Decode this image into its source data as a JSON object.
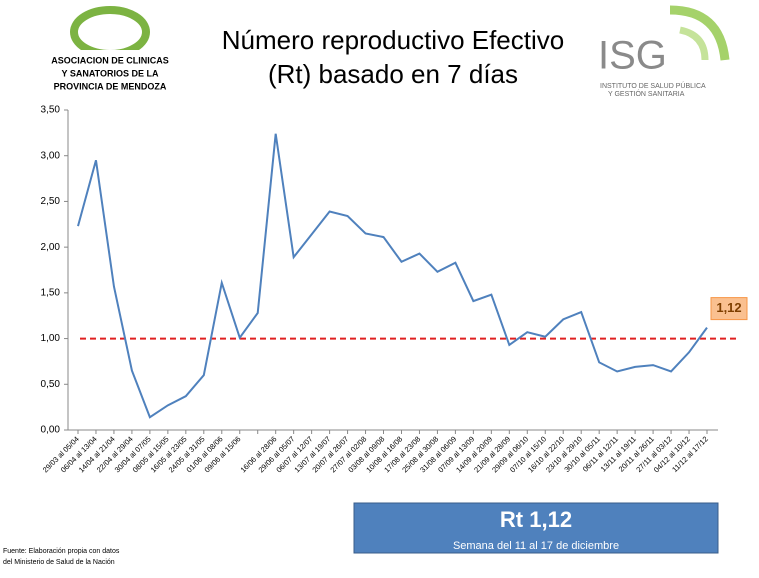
{
  "chart_data": {
    "type": "line",
    "title": [
      "Número reproductivo Efectivo",
      "(Rt) basado en 7 días"
    ],
    "logo_left": [
      "ASOCIACION DE CLINICAS",
      "Y SANATORIOS DE LA",
      "PROVINCIA DE MENDOZA"
    ],
    "logo_right": {
      "name": "ISG",
      "lines": [
        "INSTITUTO DE SALUD PÚBLICA",
        "Y GESTIÓN SANITARIA"
      ]
    },
    "categories": [
      "29/03 al 05/04",
      "06/04 al 13/04",
      "14/04 al 21/04",
      "22/04 al 29/04",
      "30/04 al 07/05",
      "08/05 al 15/05",
      "16/05 al 23/05",
      "24/05 al 31/05",
      "01/06 al 08/06",
      "09/06 al 15/06",
      null,
      "16/06 al 28/06",
      "29/06 al 05/07",
      "06/07 al 12/07",
      "13/07 al 19/07",
      "20/07 al 26/07",
      "27/07 al 02/08",
      "03/08 al 09/08",
      "10/08 al 16/08",
      "17/08 al 23/08",
      "25/08 al 30/08",
      "31/08 al 06/09",
      "07/09 al 13/09",
      "14/09 al 20/09",
      "21/09 al 28/09",
      "29/09 al 06/10",
      "07/10 al 15/10",
      "16/10 al 22/10",
      "23/10 al 29/10",
      "30/10 al 05/11",
      "06/11 al 12/11",
      "13/11 al 19/11",
      "20/11 al 26/11",
      "27/11 al 03/12",
      "04/12 al 10/12",
      "11/12 al 17/12"
    ],
    "values": [
      2.23,
      2.95,
      1.57,
      0.65,
      0.14,
      0.27,
      0.37,
      0.6,
      1.61,
      1.01,
      1.28,
      3.24,
      1.89,
      2.14,
      2.39,
      2.34,
      2.15,
      2.11,
      1.84,
      1.93,
      1.73,
      1.83,
      1.41,
      1.48,
      0.93,
      1.07,
      1.02,
      1.21,
      1.29,
      0.74,
      0.64,
      0.69,
      0.71,
      0.64,
      0.85,
      1.12
    ],
    "color": "#4f81bd",
    "ylim": [
      0,
      3.5
    ],
    "yticks": [
      {
        "value": 0,
        "label": "0,00"
      },
      {
        "value": 0.5,
        "label": "0,50"
      },
      {
        "value": 1,
        "label": "1,00"
      },
      {
        "value": 1.5,
        "label": "1,50"
      },
      {
        "value": 2,
        "label": "2,00"
      },
      {
        "value": 2.5,
        "label": "2,50"
      },
      {
        "value": 3,
        "label": "3,00"
      },
      {
        "value": 3.5,
        "label": "3,50"
      }
    ],
    "reference_line": {
      "value": 1,
      "color": "#e02020"
    },
    "last_value_label": "1,12",
    "summary": {
      "title": "Rt 1,12",
      "subtitle": "Semana del 11 al 17 de diciembre"
    },
    "source": [
      "Fuente: Elaboración propia con datos",
      "del Ministerio de Salud de la Nación"
    ]
  }
}
